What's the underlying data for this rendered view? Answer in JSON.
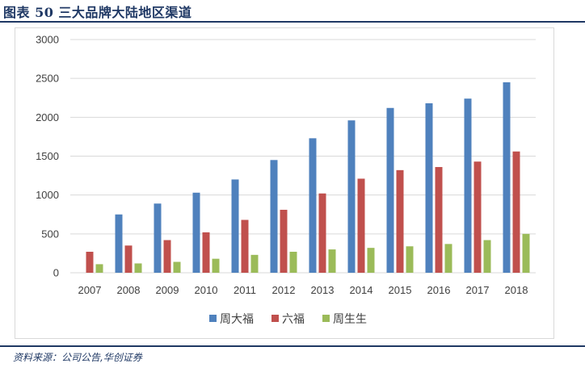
{
  "header": {
    "title": "图表 50    三大品牌大陆地区渠道"
  },
  "footer": {
    "source": "资料来源：公司公告,华创证券"
  },
  "colors": {
    "frame_rule": "#1f3864"
  },
  "chart_data": {
    "type": "bar",
    "title": "",
    "xlabel": "",
    "ylabel": "",
    "categories": [
      "2007",
      "2008",
      "2009",
      "2010",
      "2011",
      "2012",
      "2013",
      "2014",
      "2015",
      "2016",
      "2017",
      "2018"
    ],
    "ylim": [
      0,
      3000
    ],
    "yticks": [
      0,
      500,
      1000,
      1500,
      2000,
      2500,
      3000
    ],
    "grid": true,
    "legend_position": "bottom",
    "series": [
      {
        "name": "周大福",
        "color": "#4f81bd",
        "values": [
          0,
          750,
          890,
          1030,
          1200,
          1450,
          1730,
          1960,
          2120,
          2180,
          2240,
          2450
        ]
      },
      {
        "name": "六福",
        "color": "#c0504d",
        "values": [
          270,
          350,
          420,
          520,
          680,
          810,
          1020,
          1210,
          1320,
          1360,
          1430,
          1560
        ]
      },
      {
        "name": "周生生",
        "color": "#9bbb59",
        "values": [
          110,
          120,
          140,
          180,
          230,
          270,
          300,
          320,
          340,
          370,
          420,
          500
        ]
      }
    ]
  }
}
